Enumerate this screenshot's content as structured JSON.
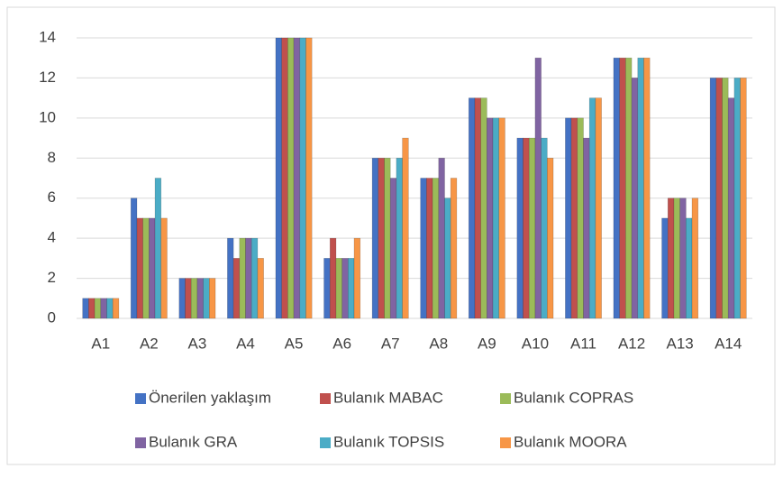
{
  "chart_data": {
    "type": "bar",
    "categories": [
      "A1",
      "A2",
      "A3",
      "A4",
      "A5",
      "A6",
      "A7",
      "A8",
      "A9",
      "A10",
      "A11",
      "A12",
      "A13",
      "A14"
    ],
    "series": [
      {
        "name": "Önerilen yaklaşım",
        "color": "#4472c4",
        "values": [
          1,
          6,
          2,
          4,
          14,
          3,
          8,
          7,
          11,
          9,
          10,
          13,
          5,
          12
        ]
      },
      {
        "name": "Bulanık MABAC",
        "color": "#c0504d",
        "values": [
          1,
          5,
          2,
          3,
          14,
          4,
          8,
          7,
          11,
          9,
          10,
          13,
          6,
          12
        ]
      },
      {
        "name": "Bulanık COPRAS",
        "color": "#9bbb59",
        "values": [
          1,
          5,
          2,
          4,
          14,
          3,
          8,
          7,
          11,
          9,
          10,
          13,
          6,
          12
        ]
      },
      {
        "name": "Bulanık GRA",
        "color": "#8064a2",
        "values": [
          1,
          5,
          2,
          4,
          14,
          3,
          7,
          8,
          10,
          13,
          9,
          12,
          6,
          11
        ]
      },
      {
        "name": "Bulanık TOPSIS",
        "color": "#4bacc6",
        "values": [
          1,
          7,
          2,
          4,
          14,
          3,
          8,
          6,
          10,
          9,
          11,
          13,
          5,
          12
        ]
      },
      {
        "name": "Bulanık MOORA",
        "color": "#f79646",
        "values": [
          1,
          5,
          2,
          3,
          14,
          4,
          9,
          7,
          10,
          8,
          11,
          13,
          6,
          12
        ]
      }
    ],
    "ylim": [
      0,
      14
    ],
    "yticks": [
      0,
      2,
      4,
      6,
      8,
      10,
      12,
      14
    ],
    "grid": true,
    "legend": "bottom"
  }
}
